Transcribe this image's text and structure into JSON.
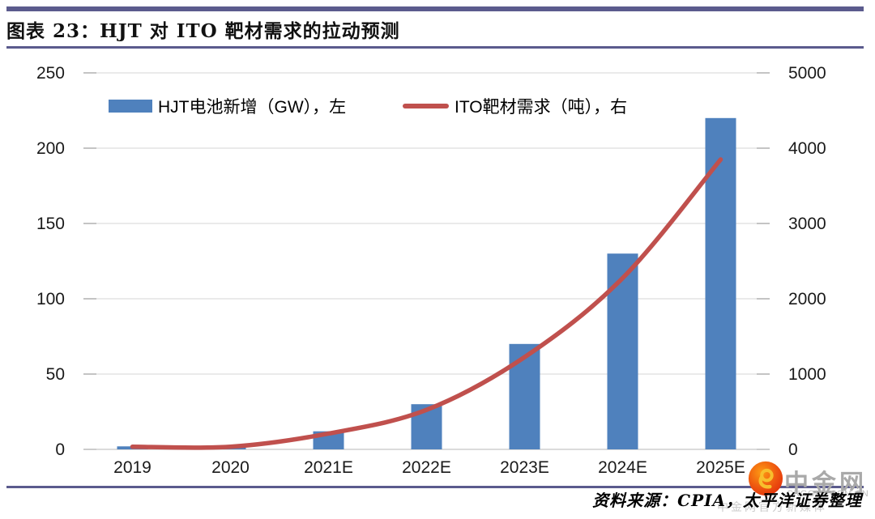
{
  "header": {
    "title": "图表 23：HJT 对 ITO 靶材需求的拉动预测"
  },
  "chart_data": {
    "type": "combo",
    "title": "图表 23：HJT 对 ITO 靶材需求的拉动预测",
    "categories": [
      "2019",
      "2020",
      "2021E",
      "2022E",
      "2023E",
      "2024E",
      "2025E"
    ],
    "series": [
      {
        "name": "HJT电池新增（GW），左",
        "type": "bar",
        "axis": "left",
        "color": "#4f81bd",
        "values": [
          2,
          2,
          12,
          30,
          70,
          130,
          220
        ]
      },
      {
        "name": "ITO靶材需求（吨），右",
        "type": "line",
        "axis": "right",
        "color": "#c0504d",
        "values": [
          35,
          35,
          210,
          525,
          1225,
          2275,
          3850
        ]
      }
    ],
    "left_axis": {
      "label": "",
      "min": 0,
      "max": 250,
      "ticks": [
        0,
        50,
        100,
        150,
        200,
        250
      ]
    },
    "right_axis": {
      "label": "",
      "min": 0,
      "max": 5000,
      "ticks": [
        0,
        1000,
        2000,
        3000,
        4000,
        5000
      ]
    },
    "grid": true,
    "legend_position": "top-inside"
  },
  "footer": {
    "source": "资料来源：CPIA，太平洋证券整理"
  },
  "watermark": {
    "logo": "swirl-flame-icon",
    "brand": "中金网",
    "domain": "CNGOLD.COM.CN",
    "tagline": "中金网官方新媒体"
  },
  "colors": {
    "bar": "#4f81bd",
    "line": "#c0504d",
    "rule": "#5b5b8d",
    "grid": "#e4e4e4",
    "tick": "#c4c4c4",
    "baseline": "#cfcfcf",
    "axis_text": "#1a1a1a",
    "watermark_gray": "#a9a9a9"
  }
}
